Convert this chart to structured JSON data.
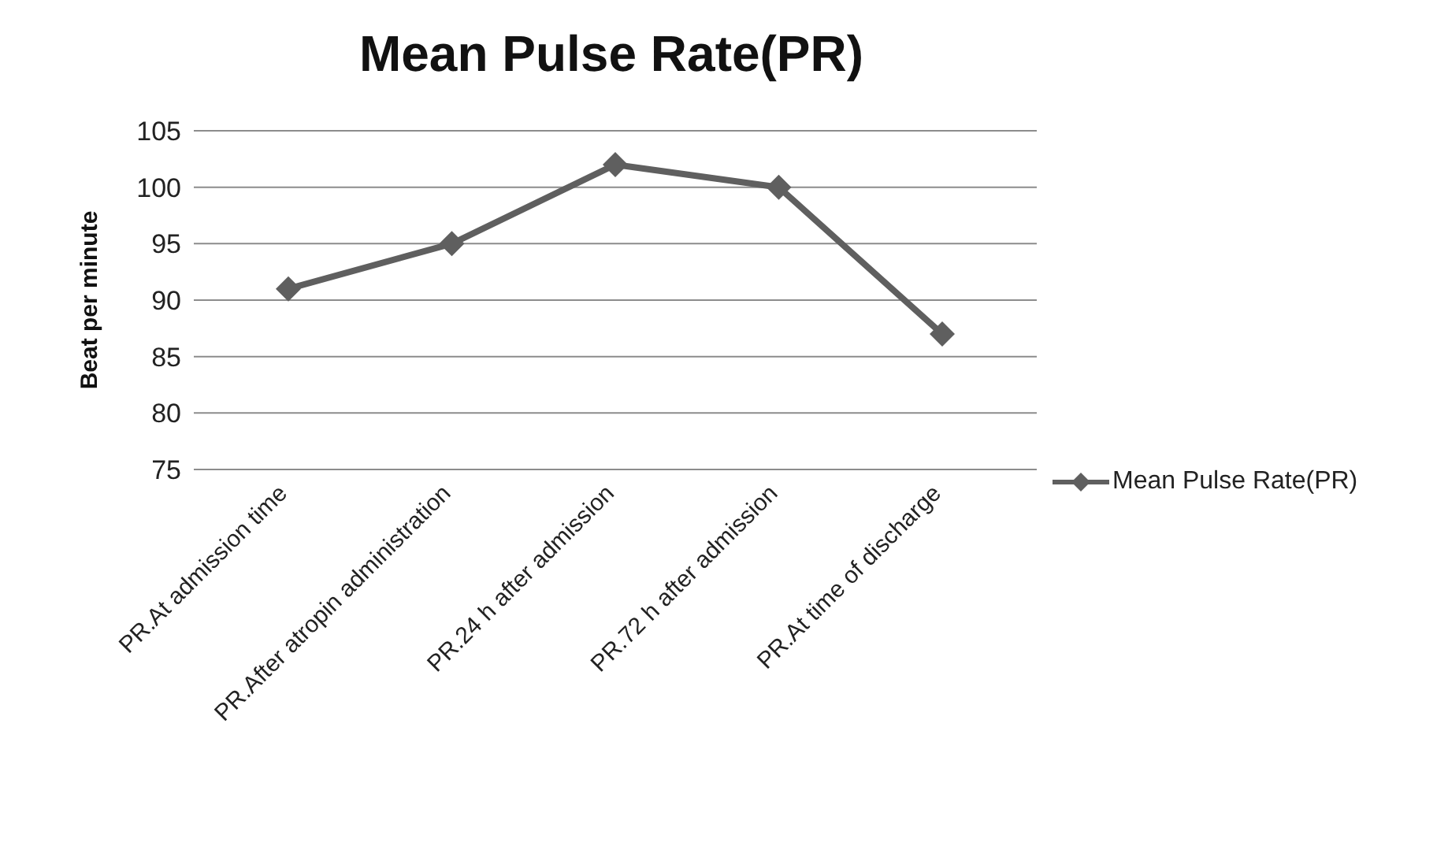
{
  "chart_data": {
    "type": "line",
    "title": "Mean Pulse Rate(PR)",
    "ylabel": "Beat per minute",
    "categories": [
      "PR.At admission time",
      "PR.After atropin administration",
      "PR.24 h after admission",
      "PR.72 h after admission",
      "PR.At time of discharge"
    ],
    "series": [
      {
        "name": "Mean Pulse Rate(PR)",
        "color": "#5f5f5f",
        "values": [
          91,
          95,
          102,
          100,
          87
        ]
      }
    ],
    "ylim": [
      75,
      105
    ],
    "yticks": [
      75,
      80,
      85,
      90,
      95,
      100,
      105
    ],
    "grid": "y",
    "legend": "right",
    "marker": "diamond",
    "line_style": "solid"
  }
}
